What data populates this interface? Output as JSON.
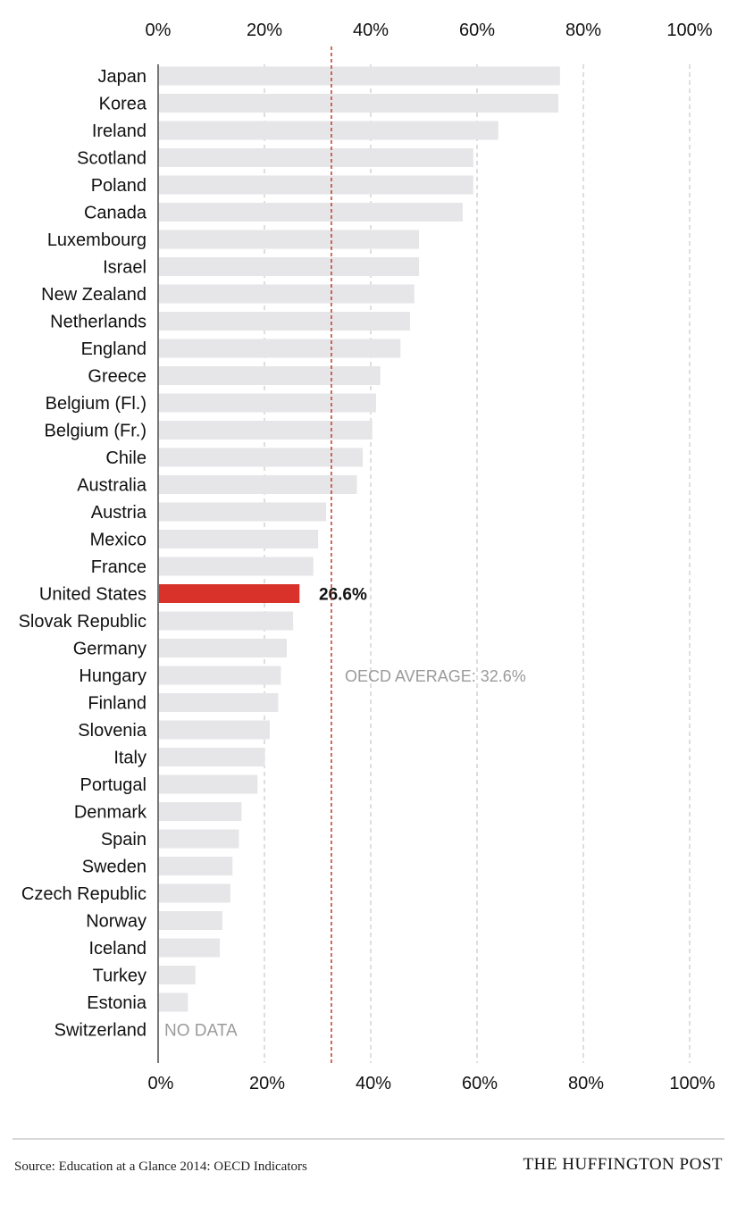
{
  "chart_data": {
    "type": "bar",
    "orientation": "horizontal",
    "title": "",
    "xlabel": "",
    "ylabel": "",
    "xlim": [
      0,
      100
    ],
    "ticks": [
      "0%",
      "20%",
      "40%",
      "60%",
      "80%",
      "100%"
    ],
    "tick_values": [
      0,
      20,
      40,
      60,
      80,
      100
    ],
    "grid": true,
    "categories": [
      "Japan",
      "Korea",
      "Ireland",
      "Scotland",
      "Poland",
      "Canada",
      "Luxembourg",
      "Israel",
      "New Zealand",
      "Netherlands",
      "England",
      "Greece",
      "Belgium (Fl.)",
      "Belgium (Fr.)",
      "Chile",
      "Australia",
      "Austria",
      "Mexico",
      "France",
      "United States",
      "Slovak Republic",
      "Germany",
      "Hungary",
      "Finland",
      "Slovenia",
      "Italy",
      "Portugal",
      "Denmark",
      "Spain",
      "Sweden",
      "Czech Republic",
      "Norway",
      "Iceland",
      "Turkey",
      "Estonia",
      "Switzerland"
    ],
    "values": [
      75.6,
      75.3,
      64.0,
      59.3,
      59.3,
      57.3,
      49.1,
      49.1,
      48.2,
      47.4,
      45.6,
      41.8,
      41.0,
      40.3,
      38.5,
      37.4,
      31.6,
      30.1,
      29.2,
      26.6,
      25.4,
      24.2,
      23.1,
      22.6,
      21.0,
      20.1,
      18.7,
      15.7,
      15.2,
      14.0,
      13.6,
      12.1,
      11.6,
      7.0,
      5.6,
      null
    ],
    "highlight": {
      "category": "United States",
      "label": "26.6%",
      "color": "#d8322a"
    },
    "bar_color": "#e6e6e8",
    "no_data_label": "NO DATA",
    "reference_line": {
      "value": 32.6,
      "label": "OECD AVERAGE: 32.6%",
      "color": "#c0392b"
    }
  },
  "footer": {
    "source": "Source: Education at a Glance 2014: OECD Indicators",
    "brand": "THE HUFFINGTON POST"
  }
}
